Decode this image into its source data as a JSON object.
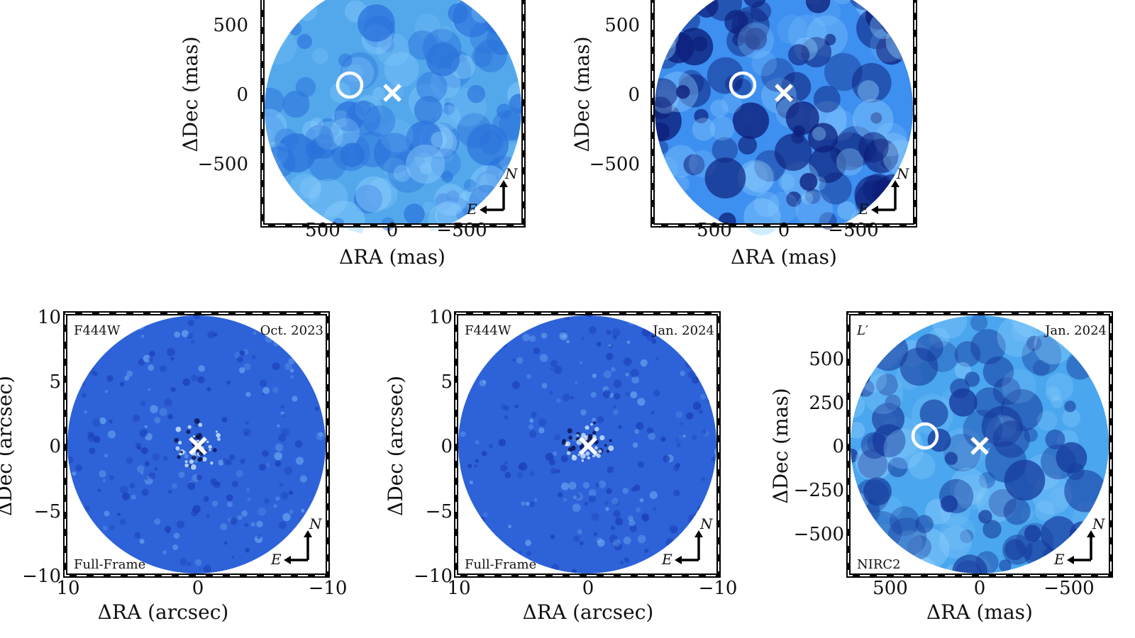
{
  "panels": [
    {
      "id": "top-left",
      "unit": "mas",
      "xlabel": "ΔRA (mas)",
      "ylabel": "ΔDec (mas)",
      "xticks": [
        "500",
        "0",
        "−500"
      ],
      "yticks": [
        "500",
        "0",
        "−500"
      ],
      "filter_label": "",
      "date_label": "",
      "corner_label": "",
      "show_circle": true,
      "compass_n": "N",
      "compass_e": "E",
      "colors": [
        "#53a8ec",
        "#2a72db"
      ]
    },
    {
      "id": "top-right",
      "unit": "mas",
      "xlabel": "ΔRA (mas)",
      "ylabel": "ΔDec (mas)",
      "xticks": [
        "500",
        "0",
        "−500"
      ],
      "yticks": [
        "500",
        "0",
        "−500"
      ],
      "filter_label": "",
      "date_label": "",
      "corner_label": "",
      "show_circle": true,
      "compass_n": "N",
      "compass_e": "E",
      "colors": [
        "#3d8ff0",
        "#0d1f7a"
      ]
    },
    {
      "id": "bottom-left",
      "unit": "arcsec",
      "xlabel": "ΔRA (arcsec)",
      "ylabel": "ΔDec (arcsec)",
      "xticks": [
        "10",
        "0",
        "−10"
      ],
      "yticks": [
        "10",
        "5",
        "0",
        "−5",
        "−10"
      ],
      "filter_label": "F444W",
      "date_label": "Oct. 2023",
      "corner_label": "Full-Frame",
      "show_circle": false,
      "compass_n": "N",
      "compass_e": "E",
      "colors": [
        "#2d62d8",
        "#1c3fb8"
      ]
    },
    {
      "id": "bottom-middle",
      "unit": "arcsec",
      "xlabel": "ΔRA (arcsec)",
      "ylabel": "ΔDec (arcsec)",
      "xticks": [
        "10",
        "0",
        "−10"
      ],
      "yticks": [
        "10",
        "5",
        "0",
        "−5",
        "−10"
      ],
      "filter_label": "F444W",
      "date_label": "Jan. 2024",
      "corner_label": "Full-Frame",
      "show_circle": false,
      "compass_n": "N",
      "compass_e": "E",
      "colors": [
        "#2d62d8",
        "#1c3fb8"
      ]
    },
    {
      "id": "bottom-right",
      "unit": "mas",
      "xlabel": "ΔRA (mas)",
      "ylabel": "ΔDec (mas)",
      "xticks": [
        "500",
        "0",
        "−500"
      ],
      "yticks": [
        "500",
        "250",
        "0",
        "−250",
        "−500"
      ],
      "filter_label": "L′",
      "date_label": "Jan. 2024",
      "corner_label": "NIRC2",
      "show_circle": true,
      "compass_n": "N",
      "compass_e": "E",
      "colors": [
        "#4aa6ee",
        "#163a9c"
      ]
    }
  ]
}
